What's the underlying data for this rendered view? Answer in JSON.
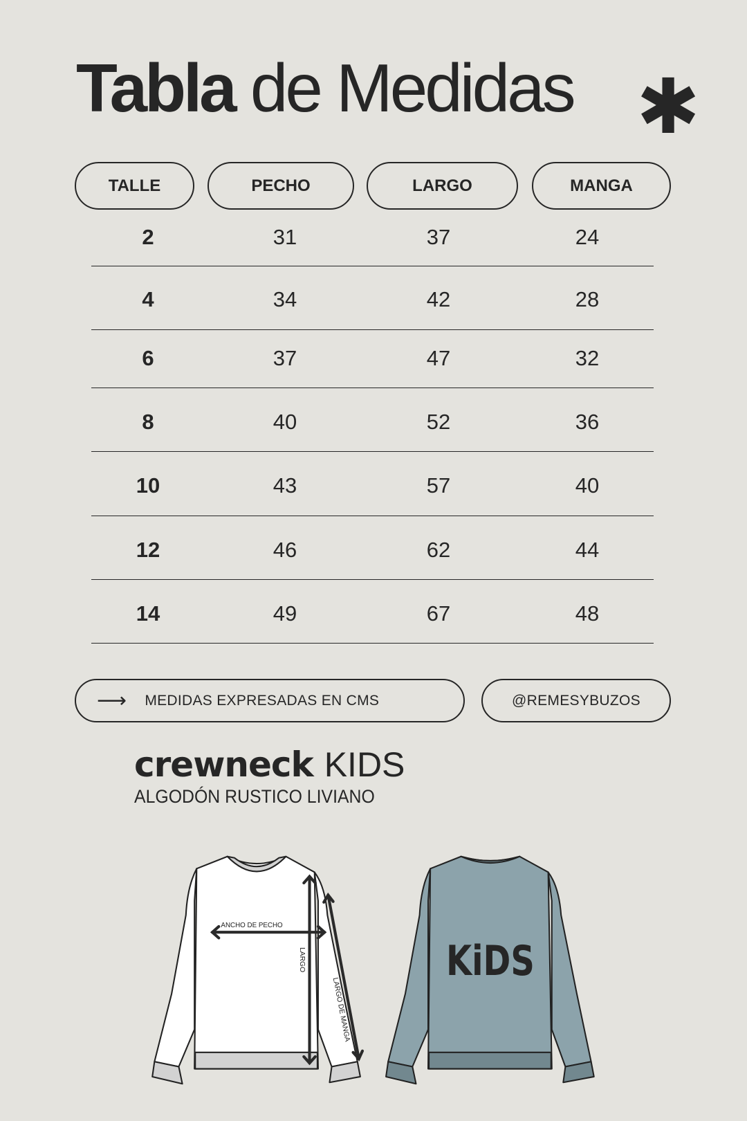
{
  "title": {
    "bold": "Tabla",
    "regular": "de Medidas",
    "decoration_icon": "asterisk-icon"
  },
  "table": {
    "headers": [
      "TALLE",
      "PECHO",
      "LARGO",
      "MANGA"
    ],
    "rows": [
      [
        "2",
        "31",
        "37",
        "24"
      ],
      [
        "4",
        "34",
        "42",
        "28"
      ],
      [
        "6",
        "37",
        "47",
        "32"
      ],
      [
        "8",
        "40",
        "52",
        "36"
      ],
      [
        "10",
        "43",
        "57",
        "40"
      ],
      [
        "12",
        "46",
        "62",
        "44"
      ],
      [
        "14",
        "49",
        "67",
        "48"
      ]
    ]
  },
  "footer": {
    "note_icon": "arrow-right-icon",
    "note": "MEDIDAS EXPRESADAS EN CMS",
    "handle": "@REMESYBUZOS"
  },
  "product": {
    "name_bold": "crewneck",
    "name_light": "KIDS",
    "subtitle": "ALGODÓN RUSTICO LIVIANO"
  },
  "illustration": {
    "labels": {
      "chest": "ANCHO DE PECHO",
      "length": "LARGO",
      "sleeve": "LARGO DE MANGA"
    },
    "back_print": "KiDS",
    "colors": {
      "front": "#ffffff",
      "back": "#8ca3ab",
      "ribbing": "#cfcfcf",
      "background": "#e4e3de"
    }
  }
}
